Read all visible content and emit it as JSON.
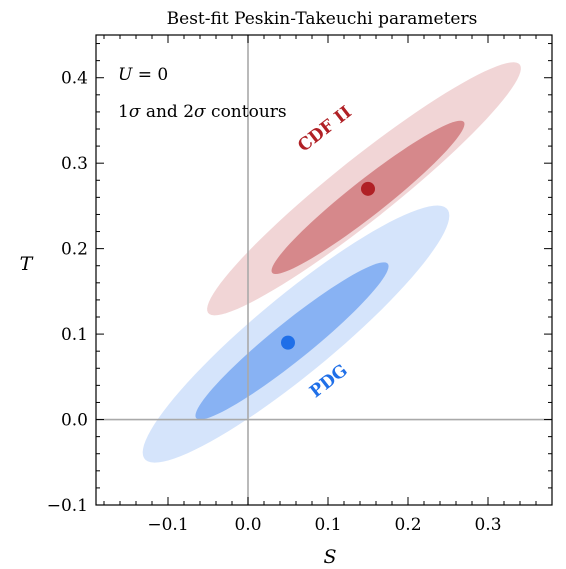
{
  "chart_data": {
    "type": "scatter",
    "title": "Best-fit Peskin-Takeuchi parameters",
    "xlabel": "S",
    "ylabel": "T",
    "xlim": [
      -0.19,
      0.38
    ],
    "ylim": [
      -0.1,
      0.45
    ],
    "x_ticks": [
      -0.1,
      0.0,
      0.1,
      0.2,
      0.3
    ],
    "y_ticks": [
      -0.1,
      0.0,
      0.1,
      0.2,
      0.3,
      0.4
    ],
    "x_tick_labels": [
      "−0.1",
      "0.0",
      "0.1",
      "0.2",
      "0.3"
    ],
    "y_tick_labels": [
      "−0.1",
      "0.0",
      "0.1",
      "0.2",
      "0.3",
      "0.4"
    ],
    "reference_lines": {
      "x": 0,
      "y": 0
    },
    "annotations": [
      "U = 0",
      "1σ and 2σ contours"
    ],
    "series": [
      {
        "name": "CDF II",
        "color": "#b02025",
        "best_fit": {
          "S": 0.15,
          "T": 0.27
        },
        "contour_1sigma": {
          "center": [
            0.15,
            0.26
          ],
          "semi_axis_major": [
            0.12,
            0.088
          ],
          "semi_axis_minor": [
            -0.012,
            0.0175
          ]
        },
        "contour_2sigma": {
          "center": [
            0.145,
            0.27
          ],
          "semi_axis_major": [
            0.195,
            0.145
          ],
          "semi_axis_minor": [
            -0.021,
            0.03
          ]
        }
      },
      {
        "name": "PDG",
        "color": "#1f6fe8",
        "best_fit": {
          "S": 0.05,
          "T": 0.09
        },
        "contour_1sigma": {
          "center": [
            0.055,
            0.092
          ],
          "semi_axis_major": [
            0.12,
            0.09
          ],
          "semi_axis_minor": [
            -0.013,
            0.019
          ]
        },
        "contour_2sigma": {
          "center": [
            0.06,
            0.1
          ],
          "semi_axis_major": [
            0.19,
            0.145
          ],
          "semi_axis_minor": [
            -0.025,
            0.04
          ]
        }
      }
    ]
  }
}
